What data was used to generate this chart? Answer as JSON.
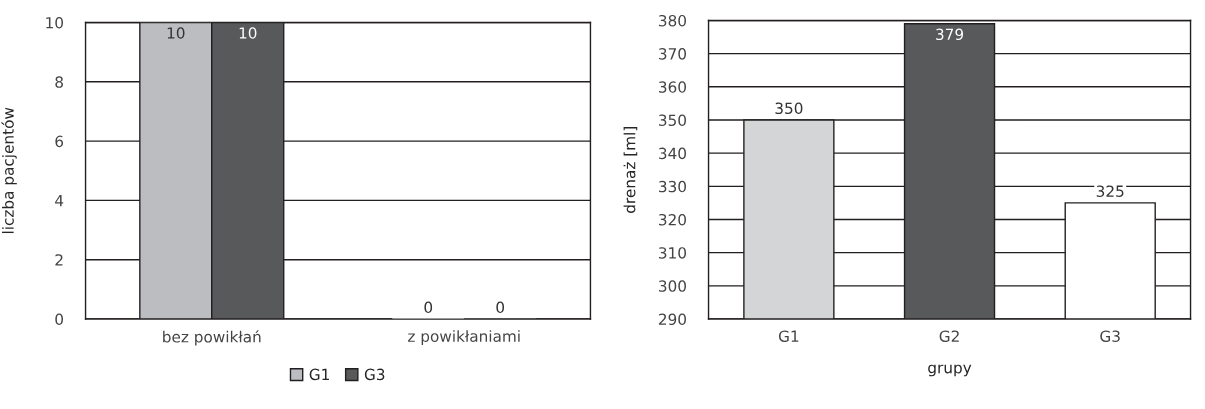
{
  "chart_data": [
    {
      "type": "bar",
      "categories": [
        "bez powikłań",
        "z powikłaniami"
      ],
      "ylabel": "liczba pacjentów",
      "series": [
        {
          "name": "G1",
          "color": "#bcbdc1",
          "values": [
            10,
            0
          ]
        },
        {
          "name": "G3",
          "color": "#58595b",
          "values": [
            10,
            0
          ]
        }
      ],
      "ylim": [
        0,
        10
      ],
      "yticks": [
        0,
        2,
        4,
        6,
        8,
        10
      ],
      "grid": "y",
      "legend": "bottom",
      "data_labels": true
    },
    {
      "type": "bar",
      "categories": [
        "G1",
        "G2",
        "G3"
      ],
      "xlabel": "grupy",
      "ylabel": "drenaż [ml]",
      "values": [
        350,
        379,
        325
      ],
      "colors": [
        "#d4d5d7",
        "#58595b",
        "#ffffff"
      ],
      "ylim": [
        290,
        380
      ],
      "yticks": [
        290,
        300,
        310,
        320,
        330,
        340,
        350,
        360,
        370,
        380
      ],
      "grid": "y",
      "data_labels": true
    }
  ]
}
